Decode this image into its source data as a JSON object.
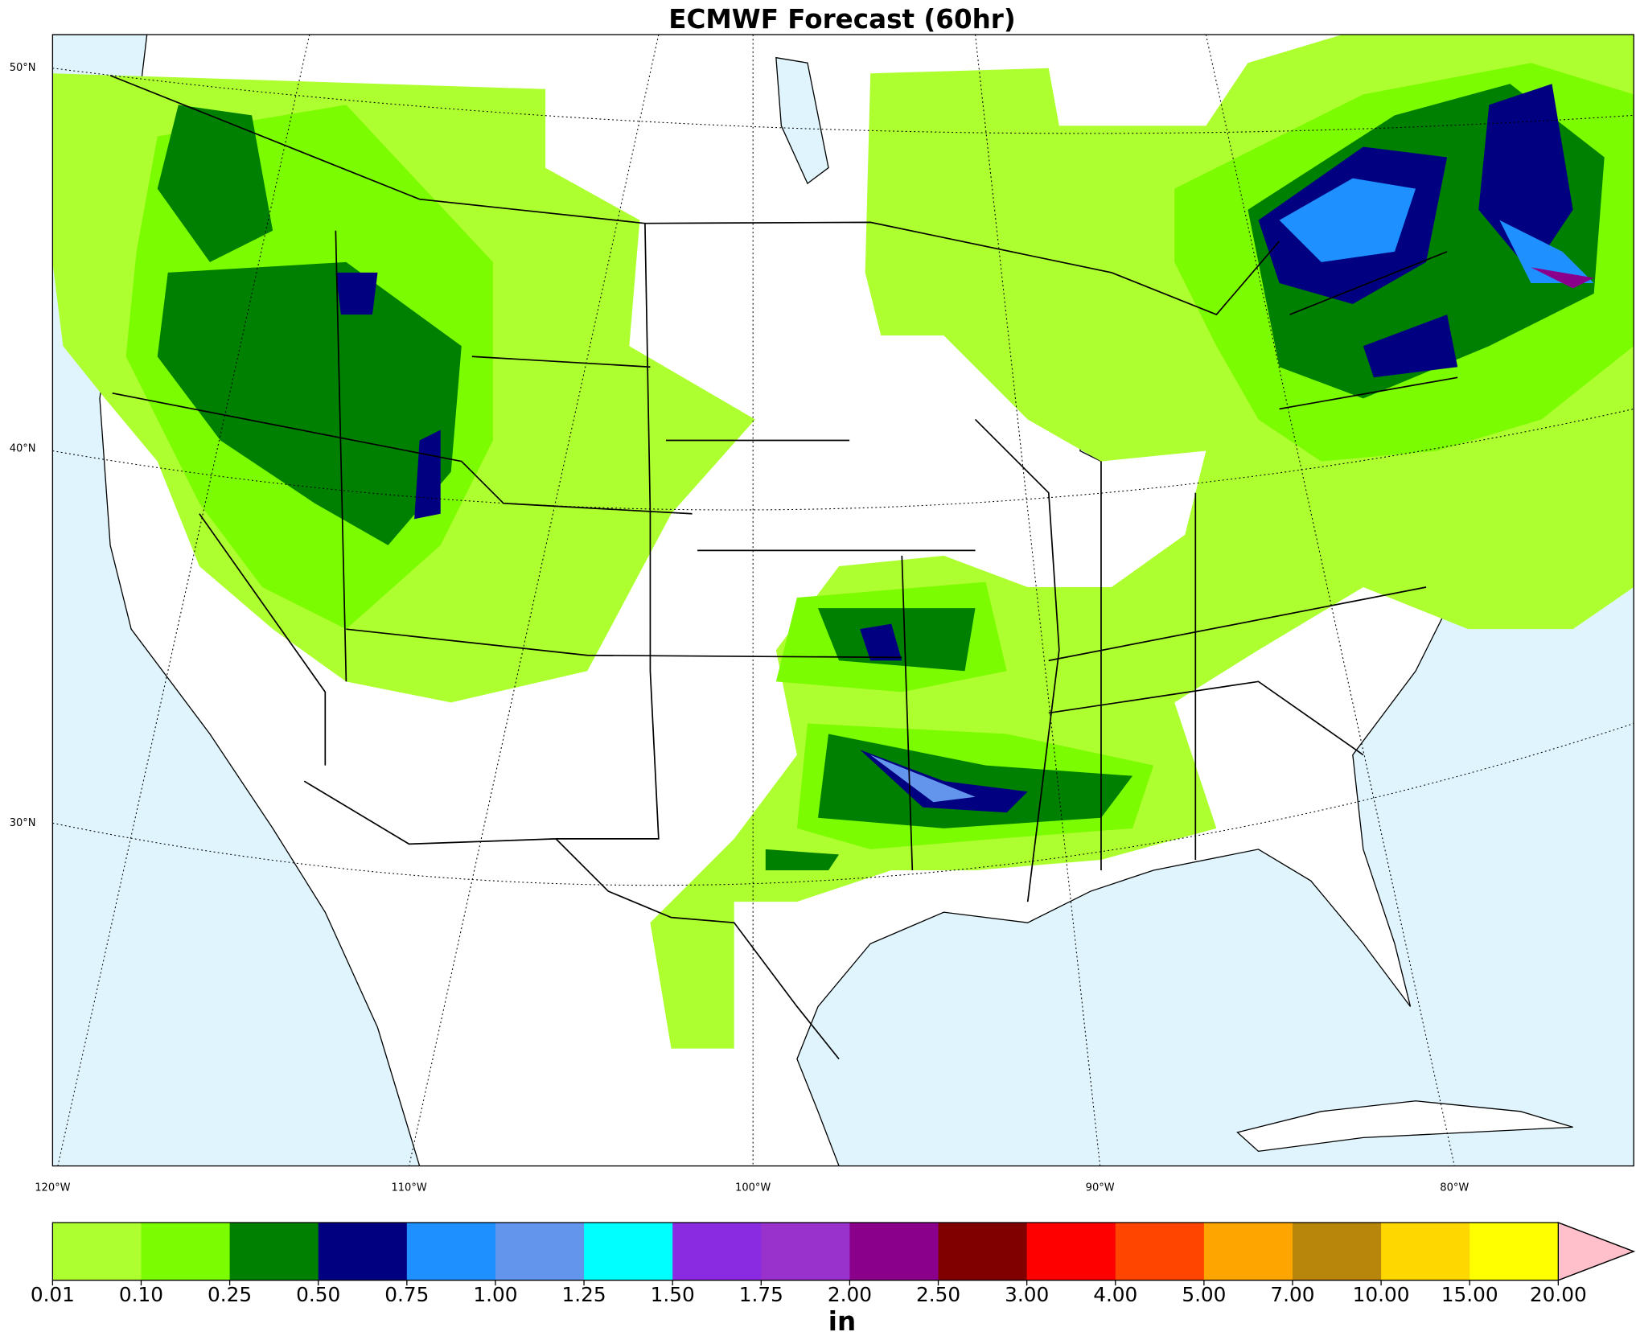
{
  "title": "ECMWF Forecast (60hr)",
  "latitude_labels": [
    "50°N",
    "40°N",
    "30°N"
  ],
  "longitude_labels": [
    "120°W",
    "110°W",
    "100°W",
    "90°W",
    "80°W"
  ],
  "colorbar": {
    "ticks": [
      "0.01",
      "0.10",
      "0.25",
      "0.50",
      "0.75",
      "1.00",
      "1.25",
      "1.50",
      "1.75",
      "2.00",
      "2.50",
      "3.00",
      "4.00",
      "5.00",
      "7.00",
      "10.00",
      "15.00",
      "20.00"
    ],
    "colors": [
      "#adff2f",
      "#7cfc00",
      "#008000",
      "#000080",
      "#1e90ff",
      "#6495ed",
      "#00ffff",
      "#8a2be2",
      "#9932cc",
      "#8b008b",
      "#800000",
      "#ff0000",
      "#ff4500",
      "#ffa500",
      "#b8860b",
      "#ffd700",
      "#ffff00"
    ],
    "extend_color": "#ffc0cb",
    "unit": "in"
  }
}
